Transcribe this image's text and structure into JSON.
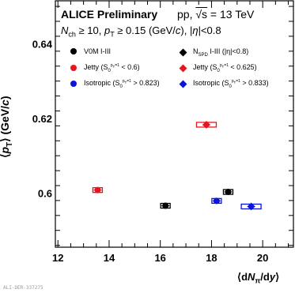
{
  "chart_data": {
    "type": "scatter",
    "title": "ALICE Preliminary",
    "energy_label": "pp, √s = 13 TeV",
    "cuts_label": "Nch ≥ 10, pT ≥ 0.15 (GeV/c), |η|<0.8",
    "xlabel": "⟨dNπ/dy⟩",
    "ylabel": "⟨pT⟩ (GeV/c)",
    "xlim": [
      11.9,
      21.2
    ],
    "ylim": [
      0.5855,
      0.6515
    ],
    "x_ticks": [
      "12",
      "14",
      "16",
      "18",
      "20"
    ],
    "y_ticks": [
      "0.6",
      "0.62",
      "0.64"
    ],
    "series": [
      {
        "name": "V0M I-III",
        "marker": "circle",
        "color": "#000000",
        "points": [
          {
            "x": 16.2,
            "y": 0.5966
          },
          {
            "x": 18.65,
            "y": 0.6003
          }
        ]
      },
      {
        "name": "NSPD I-III (|η|<0.8)",
        "marker": "diamond",
        "color": "#000000",
        "points": []
      },
      {
        "name": "Jetty (S0pT=1 < 0.6)",
        "marker": "circle",
        "color": "#e8141e",
        "points": [
          {
            "x": 13.55,
            "y": 0.6008
          }
        ]
      },
      {
        "name": "Jetty (S0pT=1 < 0.625)",
        "marker": "diamond",
        "color": "#e8141e",
        "points": [
          {
            "x": 17.8,
            "y": 0.6183
          }
        ]
      },
      {
        "name": "Isotropic (S0pT=1 > 0.823)",
        "marker": "circle",
        "color": "#0a14dc",
        "points": [
          {
            "x": 18.2,
            "y": 0.5979
          }
        ]
      },
      {
        "name": "Isotropic (S0pT=1 > 0.833)",
        "marker": "diamond",
        "color": "#0a14dc",
        "points": [
          {
            "x": 19.55,
            "y": 0.5964
          }
        ]
      }
    ],
    "legend_placement": "top-left, two columns",
    "grid": false
  },
  "watermark": "ALI-DER-337275"
}
